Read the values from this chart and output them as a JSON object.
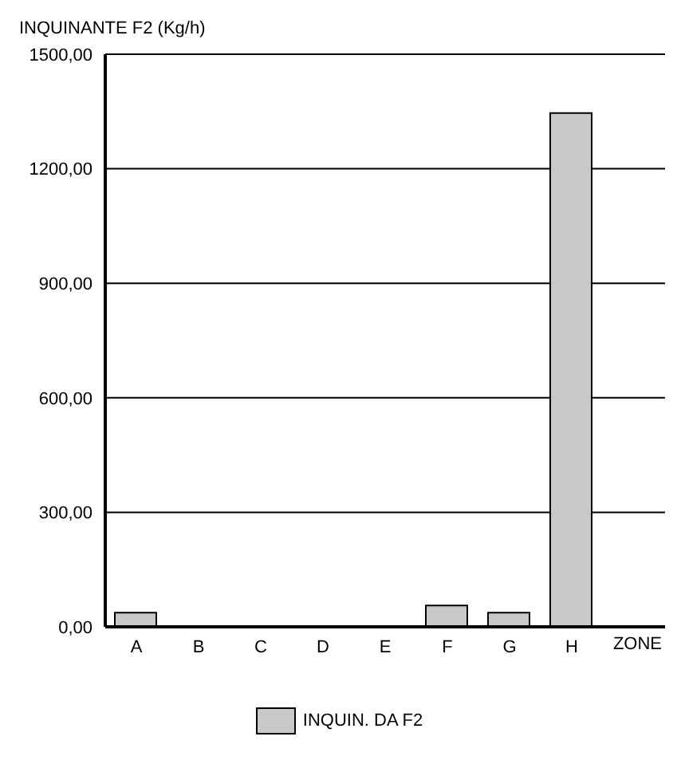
{
  "chart_data": {
    "type": "bar",
    "ylabel": "INQUINANTE F2 (Kg/h)",
    "xlabel": "ZONE",
    "categories": [
      "A",
      "B",
      "C",
      "D",
      "E",
      "F",
      "G",
      "H"
    ],
    "series": [
      {
        "name": "INQUIN. DA F2",
        "color": "#c8c8c8",
        "values": [
          37,
          0,
          0,
          0,
          0,
          56,
          37,
          1346
        ]
      }
    ],
    "ylim": [
      0,
      1500
    ],
    "yticks": [
      {
        "value": 0,
        "label": "0,00"
      },
      {
        "value": 300,
        "label": "300,00"
      },
      {
        "value": 600,
        "label": "600,00"
      },
      {
        "value": 900,
        "label": "900,00"
      },
      {
        "value": 1200,
        "label": "1200,00"
      },
      {
        "value": 1500,
        "label": "1500,00"
      }
    ],
    "grid": "y",
    "legend": "bottom"
  }
}
